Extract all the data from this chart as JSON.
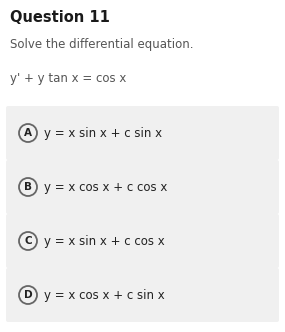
{
  "title": "Question 11",
  "subtitle": "Solve the differential equation.",
  "equation": "y' + y tan x = cos x",
  "options": [
    {
      "label": "A",
      "text": "y = x sin x + c sin x"
    },
    {
      "label": "B",
      "text": "y = x cos x + c cos x"
    },
    {
      "label": "C",
      "text": "y = x sin x + c cos x"
    },
    {
      "label": "D",
      "text": "y = x cos x + c sin x"
    }
  ],
  "bg_color": "#ffffff",
  "option_bg_color": "#f0f0f0",
  "title_color": "#1a1a1a",
  "subtitle_color": "#555555",
  "equation_color": "#555555",
  "option_text_color": "#222222",
  "circle_edge_color": "#666666",
  "title_fontsize": 10.5,
  "subtitle_fontsize": 8.5,
  "equation_fontsize": 8.5,
  "option_fontsize": 8.5,
  "label_fontsize": 7.5,
  "fig_width": 2.85,
  "fig_height": 3.32,
  "dpi": 100
}
